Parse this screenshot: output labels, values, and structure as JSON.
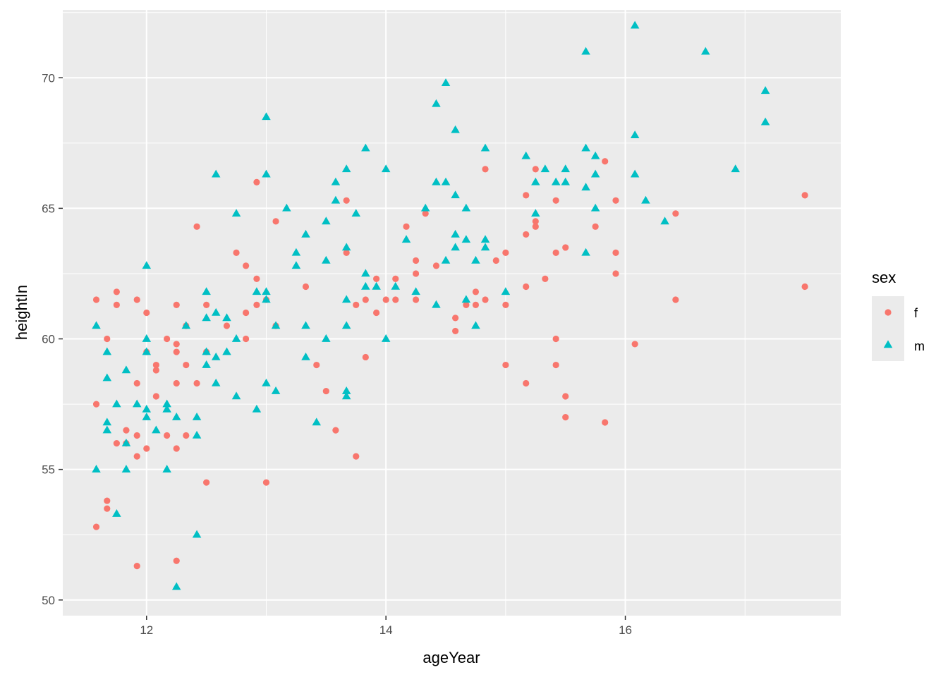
{
  "chart_data": {
    "type": "scatter",
    "xlabel": "ageYear",
    "ylabel": "heightIn",
    "xlim": [
      11.3,
      17.8
    ],
    "ylim": [
      49.4,
      72.6
    ],
    "x_ticks": [
      12,
      14,
      16
    ],
    "y_ticks": [
      50,
      55,
      60,
      65,
      70
    ],
    "grid": true,
    "background": "#ebebeb",
    "legend": {
      "title": "sex",
      "placement": "right",
      "entries": [
        {
          "label": "f",
          "shape": "circle",
          "color": "#F8766D"
        },
        {
          "label": "m",
          "shape": "triangle",
          "color": "#00BFC4"
        }
      ]
    },
    "series": [
      {
        "name": "f",
        "shape": "circle",
        "color": "#F8766D",
        "points": [
          [
            11.58,
            61.5
          ],
          [
            11.58,
            57.5
          ],
          [
            11.58,
            52.8
          ],
          [
            11.67,
            60.0
          ],
          [
            11.67,
            53.8
          ],
          [
            11.67,
            53.5
          ],
          [
            11.75,
            61.8
          ],
          [
            11.75,
            61.3
          ],
          [
            11.75,
            56.0
          ],
          [
            11.83,
            56.5
          ],
          [
            11.83,
            56.0
          ],
          [
            11.92,
            61.5
          ],
          [
            11.92,
            58.3
          ],
          [
            11.92,
            56.3
          ],
          [
            11.92,
            55.5
          ],
          [
            11.92,
            51.3
          ],
          [
            12.0,
            61.0
          ],
          [
            12.0,
            59.5
          ],
          [
            12.0,
            55.8
          ],
          [
            12.08,
            59.0
          ],
          [
            12.08,
            58.8
          ],
          [
            12.08,
            57.8
          ],
          [
            12.17,
            60.0
          ],
          [
            12.17,
            56.3
          ],
          [
            12.25,
            61.3
          ],
          [
            12.25,
            59.8
          ],
          [
            12.25,
            59.5
          ],
          [
            12.25,
            58.3
          ],
          [
            12.25,
            55.8
          ],
          [
            12.25,
            51.5
          ],
          [
            12.33,
            60.5
          ],
          [
            12.33,
            59.0
          ],
          [
            12.33,
            56.3
          ],
          [
            12.42,
            64.3
          ],
          [
            12.42,
            58.3
          ],
          [
            12.5,
            61.3
          ],
          [
            12.5,
            59.5
          ],
          [
            12.5,
            54.5
          ],
          [
            12.67,
            60.5
          ],
          [
            12.75,
            63.3
          ],
          [
            12.83,
            62.8
          ],
          [
            12.83,
            61.0
          ],
          [
            12.83,
            60.0
          ],
          [
            12.92,
            66.0
          ],
          [
            12.92,
            62.3
          ],
          [
            12.92,
            61.3
          ],
          [
            13.0,
            61.5
          ],
          [
            13.0,
            54.5
          ],
          [
            13.08,
            64.5
          ],
          [
            13.08,
            60.5
          ],
          [
            13.33,
            62.0
          ],
          [
            13.42,
            59.0
          ],
          [
            13.5,
            58.0
          ],
          [
            13.58,
            56.5
          ],
          [
            13.67,
            65.3
          ],
          [
            13.67,
            63.3
          ],
          [
            13.75,
            61.3
          ],
          [
            13.75,
            55.5
          ],
          [
            13.83,
            61.5
          ],
          [
            13.83,
            59.3
          ],
          [
            13.92,
            62.3
          ],
          [
            13.92,
            61.0
          ],
          [
            14.0,
            61.5
          ],
          [
            14.08,
            62.3
          ],
          [
            14.08,
            61.5
          ],
          [
            14.17,
            64.3
          ],
          [
            14.25,
            63.0
          ],
          [
            14.25,
            62.5
          ],
          [
            14.25,
            61.5
          ],
          [
            14.33,
            64.8
          ],
          [
            14.42,
            62.8
          ],
          [
            14.58,
            60.8
          ],
          [
            14.58,
            60.3
          ],
          [
            14.67,
            61.3
          ],
          [
            14.75,
            61.8
          ],
          [
            14.75,
            61.3
          ],
          [
            14.83,
            66.5
          ],
          [
            14.83,
            61.5
          ],
          [
            14.92,
            63.0
          ],
          [
            15.0,
            63.3
          ],
          [
            15.0,
            61.3
          ],
          [
            15.0,
            59.0
          ],
          [
            15.17,
            65.5
          ],
          [
            15.17,
            64.0
          ],
          [
            15.17,
            62.0
          ],
          [
            15.17,
            58.3
          ],
          [
            15.25,
            66.5
          ],
          [
            15.25,
            64.5
          ],
          [
            15.25,
            64.3
          ],
          [
            15.33,
            62.3
          ],
          [
            15.42,
            65.3
          ],
          [
            15.42,
            63.3
          ],
          [
            15.42,
            60.0
          ],
          [
            15.42,
            59.0
          ],
          [
            15.5,
            63.5
          ],
          [
            15.5,
            57.8
          ],
          [
            15.5,
            57.0
          ],
          [
            15.75,
            64.3
          ],
          [
            15.83,
            66.8
          ],
          [
            15.83,
            56.8
          ],
          [
            15.92,
            65.3
          ],
          [
            15.92,
            63.3
          ],
          [
            15.92,
            62.5
          ],
          [
            16.08,
            59.8
          ],
          [
            16.42,
            64.8
          ],
          [
            16.42,
            61.5
          ],
          [
            17.5,
            65.5
          ],
          [
            17.5,
            62.0
          ]
        ]
      },
      {
        "name": "m",
        "shape": "triangle",
        "color": "#00BFC4",
        "points": [
          [
            11.58,
            60.5
          ],
          [
            11.58,
            55.0
          ],
          [
            11.67,
            59.5
          ],
          [
            11.67,
            58.5
          ],
          [
            11.67,
            56.8
          ],
          [
            11.67,
            56.5
          ],
          [
            11.75,
            57.5
          ],
          [
            11.75,
            53.3
          ],
          [
            11.83,
            58.8
          ],
          [
            11.83,
            56.0
          ],
          [
            11.83,
            55.0
          ],
          [
            11.92,
            57.5
          ],
          [
            12.0,
            62.8
          ],
          [
            12.0,
            60.0
          ],
          [
            12.0,
            59.5
          ],
          [
            12.0,
            57.3
          ],
          [
            12.0,
            57.0
          ],
          [
            12.08,
            56.5
          ],
          [
            12.17,
            57.5
          ],
          [
            12.17,
            57.3
          ],
          [
            12.17,
            55.0
          ],
          [
            12.25,
            57.0
          ],
          [
            12.25,
            50.5
          ],
          [
            12.33,
            60.5
          ],
          [
            12.42,
            57.0
          ],
          [
            12.42,
            56.3
          ],
          [
            12.42,
            52.5
          ],
          [
            12.5,
            61.8
          ],
          [
            12.5,
            60.8
          ],
          [
            12.5,
            59.5
          ],
          [
            12.5,
            59.0
          ],
          [
            12.58,
            66.3
          ],
          [
            12.58,
            61.0
          ],
          [
            12.58,
            59.3
          ],
          [
            12.58,
            58.3
          ],
          [
            12.67,
            60.8
          ],
          [
            12.67,
            59.5
          ],
          [
            12.75,
            64.8
          ],
          [
            12.75,
            60.0
          ],
          [
            12.75,
            57.8
          ],
          [
            12.92,
            61.8
          ],
          [
            12.92,
            57.3
          ],
          [
            13.0,
            68.5
          ],
          [
            13.0,
            66.3
          ],
          [
            13.0,
            61.8
          ],
          [
            13.0,
            61.5
          ],
          [
            13.0,
            58.3
          ],
          [
            13.08,
            60.5
          ],
          [
            13.08,
            58.0
          ],
          [
            13.17,
            65.0
          ],
          [
            13.25,
            63.3
          ],
          [
            13.25,
            62.8
          ],
          [
            13.33,
            64.0
          ],
          [
            13.33,
            60.5
          ],
          [
            13.33,
            59.3
          ],
          [
            13.42,
            56.8
          ],
          [
            13.5,
            64.5
          ],
          [
            13.5,
            63.0
          ],
          [
            13.5,
            60.0
          ],
          [
            13.58,
            66.0
          ],
          [
            13.58,
            65.3
          ],
          [
            13.67,
            66.5
          ],
          [
            13.67,
            63.5
          ],
          [
            13.67,
            61.5
          ],
          [
            13.67,
            60.5
          ],
          [
            13.67,
            58.0
          ],
          [
            13.67,
            57.8
          ],
          [
            13.75,
            64.8
          ],
          [
            13.83,
            67.3
          ],
          [
            13.83,
            62.5
          ],
          [
            13.83,
            62.0
          ],
          [
            13.92,
            62.0
          ],
          [
            14.0,
            66.5
          ],
          [
            14.0,
            60.0
          ],
          [
            14.08,
            62.0
          ],
          [
            14.17,
            63.8
          ],
          [
            14.25,
            61.8
          ],
          [
            14.33,
            65.0
          ],
          [
            14.42,
            69.0
          ],
          [
            14.42,
            66.0
          ],
          [
            14.42,
            61.3
          ],
          [
            14.5,
            69.8
          ],
          [
            14.5,
            66.0
          ],
          [
            14.5,
            63.0
          ],
          [
            14.58,
            68.0
          ],
          [
            14.58,
            65.5
          ],
          [
            14.58,
            64.0
          ],
          [
            14.58,
            63.5
          ],
          [
            14.67,
            65.0
          ],
          [
            14.67,
            63.8
          ],
          [
            14.67,
            61.5
          ],
          [
            14.75,
            63.0
          ],
          [
            14.75,
            60.5
          ],
          [
            14.83,
            67.3
          ],
          [
            14.83,
            63.8
          ],
          [
            14.83,
            63.5
          ],
          [
            15.0,
            61.8
          ],
          [
            15.17,
            67.0
          ],
          [
            15.25,
            66.0
          ],
          [
            15.25,
            64.8
          ],
          [
            15.33,
            66.5
          ],
          [
            15.42,
            66.0
          ],
          [
            15.5,
            66.5
          ],
          [
            15.5,
            66.0
          ],
          [
            15.67,
            71.0
          ],
          [
            15.67,
            67.3
          ],
          [
            15.67,
            65.8
          ],
          [
            15.67,
            63.3
          ],
          [
            15.75,
            67.0
          ],
          [
            15.75,
            66.3
          ],
          [
            15.75,
            65.0
          ],
          [
            16.08,
            72.0
          ],
          [
            16.08,
            67.8
          ],
          [
            16.08,
            66.3
          ],
          [
            16.17,
            65.3
          ],
          [
            16.33,
            64.5
          ],
          [
            16.67,
            71.0
          ],
          [
            16.92,
            66.5
          ],
          [
            17.17,
            69.5
          ],
          [
            17.17,
            68.3
          ]
        ]
      }
    ]
  }
}
